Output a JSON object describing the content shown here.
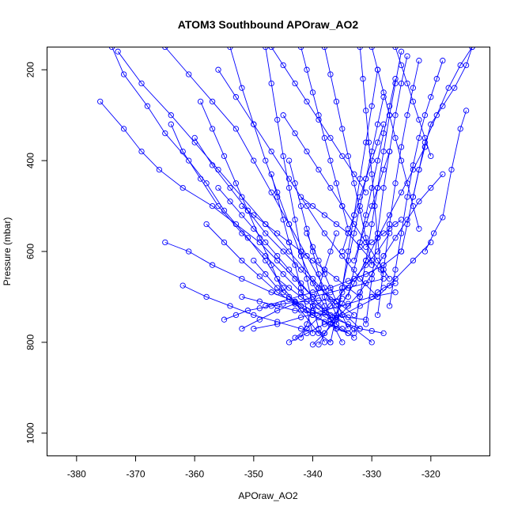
{
  "chart_data": {
    "type": "line",
    "title": "ATOM3 Southbound APOraw_AO2",
    "xlabel": "APOraw_AO2",
    "ylabel": "Pressure (mbar)",
    "xlim": [
      -385,
      -310
    ],
    "ylim": [
      1050,
      150
    ],
    "y_axis_inverted": true,
    "x_ticks": [
      -380,
      -370,
      -360,
      -350,
      -340,
      -330,
      -320
    ],
    "x_tick_labels": [
      "-380",
      "-370",
      "-360",
      "-350",
      "-340",
      "-330",
      "-320"
    ],
    "y_ticks": [
      200,
      400,
      600,
      800,
      1000
    ],
    "y_tick_labels": [
      "200",
      "400",
      "600",
      "800",
      "1000"
    ],
    "marker": "open-circle",
    "series_color": "#0000ff",
    "grid": false,
    "series": [
      {
        "x": [
          -374,
          -372,
          -368,
          -365,
          -361,
          -358,
          -355,
          -351,
          -348,
          -345,
          -342,
          -339,
          -337
        ],
        "y": [
          150,
          210,
          280,
          340,
          400,
          450,
          510,
          570,
          620,
          680,
          730,
          780,
          800
        ]
      },
      {
        "x": [
          -373,
          -369,
          -364,
          -360,
          -356,
          -352,
          -348,
          -344,
          -340,
          -336,
          -332
        ],
        "y": [
          160,
          230,
          300,
          360,
          420,
          480,
          540,
          600,
          660,
          720,
          770
        ]
      },
      {
        "x": [
          -376,
          -372,
          -369,
          -366,
          -362,
          -357,
          -353,
          -349,
          -346,
          -343,
          -340,
          -337,
          -335
        ],
        "y": [
          270,
          330,
          380,
          420,
          460,
          500,
          540,
          580,
          620,
          660,
          700,
          750,
          800
        ]
      },
      {
        "x": [
          -365,
          -361,
          -357,
          -353,
          -350,
          -347,
          -344,
          -341,
          -338,
          -336
        ],
        "y": [
          150,
          210,
          270,
          330,
          400,
          470,
          540,
          610,
          680,
          740
        ]
      },
      {
        "x": [
          -364,
          -362,
          -359,
          -356,
          -352,
          -348,
          -345,
          -342,
          -339,
          -336,
          -333,
          -330
        ],
        "y": [
          320,
          380,
          440,
          500,
          560,
          610,
          650,
          690,
          720,
          745,
          770,
          800
        ]
      },
      {
        "x": [
          -365,
          -361,
          -357,
          -352,
          -347,
          -343,
          -340,
          -337,
          -335,
          -333
        ],
        "y": [
          580,
          600,
          630,
          660,
          690,
          710,
          730,
          750,
          770,
          790
        ]
      },
      {
        "x": [
          -362,
          -358,
          -354,
          -350,
          -346,
          -342,
          -338
        ],
        "y": [
          675,
          700,
          720,
          740,
          755,
          770,
          780
        ]
      },
      {
        "x": [
          -358,
          -355,
          -352,
          -349,
          -346,
          -343,
          -340,
          -337,
          -334
        ],
        "y": [
          540,
          580,
          620,
          655,
          690,
          715,
          740,
          760,
          780
        ]
      },
      {
        "x": [
          -360,
          -357,
          -354,
          -351,
          -348,
          -345,
          -342,
          -339,
          -336,
          -333
        ],
        "y": [
          350,
          410,
          460,
          510,
          560,
          600,
          640,
          680,
          710,
          740
        ]
      },
      {
        "x": [
          -356,
          -353,
          -350,
          -347,
          -344,
          -341,
          -338,
          -335,
          -332,
          -329
        ],
        "y": [
          200,
          260,
          320,
          380,
          440,
          500,
          560,
          610,
          660,
          700
        ]
      },
      {
        "x": [
          -354,
          -352,
          -350,
          -348,
          -346,
          -344,
          -342,
          -340,
          -338,
          -336
        ],
        "y": [
          150,
          240,
          320,
          400,
          470,
          540,
          610,
          670,
          720,
          770
        ]
      },
      {
        "x": [
          -348,
          -347,
          -346,
          -345,
          -344,
          -343,
          -342,
          -341,
          -340,
          -339,
          -338
        ],
        "y": [
          150,
          230,
          310,
          390,
          460,
          530,
          600,
          660,
          720,
          770,
          800
        ]
      },
      {
        "x": [
          -352,
          -349,
          -346,
          -343,
          -340,
          -337,
          -334,
          -331,
          -328
        ],
        "y": [
          770,
          750,
          730,
          715,
          700,
          690,
          680,
          670,
          660
        ]
      },
      {
        "x": [
          -350,
          -346,
          -342,
          -338,
          -334,
          -330,
          -326
        ],
        "y": [
          770,
          760,
          745,
          730,
          715,
          700,
          690
        ]
      },
      {
        "x": [
          -348,
          -344,
          -340,
          -337,
          -334,
          -331,
          -328,
          -325
        ],
        "y": [
          720,
          705,
          690,
          680,
          665,
          650,
          630,
          600
        ]
      },
      {
        "x": [
          -344,
          -341,
          -338,
          -335,
          -332,
          -329,
          -326,
          -323,
          -320
        ],
        "y": [
          800,
          780,
          760,
          740,
          720,
          700,
          660,
          620,
          580
        ]
      },
      {
        "x": [
          -343,
          -341,
          -339,
          -337,
          -335,
          -333,
          -331,
          -329,
          -327
        ],
        "y": [
          790,
          770,
          745,
          720,
          690,
          660,
          630,
          600,
          560
        ]
      },
      {
        "x": [
          -340,
          -338,
          -336,
          -334,
          -332,
          -330,
          -328,
          -326,
          -324,
          -322,
          -320,
          -318
        ],
        "y": [
          805,
          780,
          750,
          720,
          690,
          650,
          610,
          570,
          530,
          490,
          460,
          430
        ]
      },
      {
        "x": [
          -339,
          -337,
          -335,
          -333,
          -331,
          -329,
          -327,
          -325,
          -323,
          -321
        ],
        "y": [
          805,
          760,
          715,
          670,
          620,
          570,
          520,
          470,
          420,
          370
        ]
      },
      {
        "x": [
          -337,
          -336,
          -335,
          -334,
          -333,
          -332,
          -331,
          -330,
          -329,
          -328
        ],
        "y": [
          800,
          740,
          680,
          620,
          560,
          500,
          440,
          380,
          320,
          260
        ]
      },
      {
        "x": [
          -336,
          -335,
          -334,
          -333,
          -332,
          -331,
          -330,
          -329
        ],
        "y": [
          760,
          680,
          600,
          520,
          440,
          360,
          280,
          200
        ]
      },
      {
        "x": [
          -334,
          -333,
          -332,
          -331,
          -330,
          -329,
          -328,
          -327,
          -326
        ],
        "y": [
          700,
          640,
          580,
          520,
          460,
          400,
          340,
          280,
          220
        ]
      },
      {
        "x": [
          -333,
          -332,
          -331,
          -330,
          -329,
          -328,
          -327,
          -326,
          -325
        ],
        "y": [
          780,
          700,
          620,
          540,
          460,
          380,
          300,
          230,
          160
        ]
      },
      {
        "x": [
          -331,
          -330,
          -329,
          -328,
          -327,
          -326,
          -325,
          -324
        ],
        "y": [
          760,
          660,
          560,
          460,
          380,
          300,
          230,
          170
        ]
      },
      {
        "x": [
          -329,
          -328,
          -327,
          -326,
          -325,
          -324,
          -323,
          -322
        ],
        "y": [
          740,
          640,
          540,
          450,
          370,
          300,
          240,
          180
        ]
      },
      {
        "x": [
          -327,
          -326,
          -325,
          -324,
          -323,
          -322,
          -321,
          -320,
          -319,
          -318
        ],
        "y": [
          720,
          640,
          560,
          480,
          410,
          350,
          300,
          260,
          220,
          180
        ]
      },
      {
        "x": [
          -325,
          -324,
          -323,
          -322,
          -321,
          -320,
          -318,
          -316,
          -314,
          -313
        ],
        "y": [
          600,
          540,
          480,
          420,
          370,
          320,
          280,
          240,
          190,
          150
        ]
      },
      {
        "x": [
          -323,
          -322,
          -321,
          -319,
          -317,
          -315,
          -313
        ],
        "y": [
          480,
          420,
          360,
          300,
          240,
          190,
          150
        ]
      },
      {
        "x": [
          -321,
          -319.5,
          -318,
          -316.5,
          -315,
          -314
        ],
        "y": [
          600,
          560,
          525,
          420,
          330,
          290
        ]
      },
      {
        "x": [
          -328,
          -330,
          -332,
          -334,
          -336,
          -338,
          -340,
          -342
        ],
        "y": [
          650,
          620,
          590,
          560,
          540,
          520,
          500,
          480
        ]
      },
      {
        "x": [
          -345,
          -343,
          -341,
          -339,
          -337,
          -335,
          -333,
          -331,
          -329,
          -327
        ],
        "y": [
          300,
          340,
          380,
          420,
          460,
          500,
          540,
          580,
          620,
          660
        ]
      },
      {
        "x": [
          -347,
          -345,
          -343,
          -341,
          -339,
          -337,
          -335,
          -333,
          -331
        ],
        "y": [
          150,
          190,
          230,
          270,
          310,
          350,
          390,
          430,
          470
        ]
      },
      {
        "x": [
          -342,
          -341,
          -340,
          -339,
          -338,
          -337,
          -336,
          -335,
          -334
        ],
        "y": [
          150,
          200,
          250,
          300,
          350,
          400,
          450,
          500,
          550
        ]
      },
      {
        "x": [
          -338,
          -337,
          -336,
          -335,
          -334,
          -333,
          -332,
          -331,
          -330
        ],
        "y": [
          150,
          210,
          270,
          330,
          390,
          450,
          510,
          570,
          630
        ]
      },
      {
        "x": [
          -332,
          -331.5,
          -331,
          -330.5,
          -330,
          -329.5,
          -329,
          -328.5
        ],
        "y": [
          150,
          220,
          290,
          360,
          430,
          500,
          570,
          640
        ]
      },
      {
        "x": [
          -330,
          -329,
          -328,
          -327,
          -326,
          -325,
          -324,
          -323,
          -322
        ],
        "y": [
          150,
          200,
          250,
          300,
          350,
          400,
          450,
          500,
          550
        ]
      },
      {
        "x": [
          -326,
          -325,
          -324,
          -323,
          -322,
          -321,
          -320
        ],
        "y": [
          150,
          190,
          230,
          270,
          310,
          350,
          390
        ]
      },
      {
        "x": [
          -352,
          -350,
          -348,
          -346,
          -344,
          -342,
          -340,
          -338,
          -336,
          -334,
          -332
        ],
        "y": [
          500,
          520,
          540,
          560,
          580,
          600,
          620,
          640,
          660,
          680,
          700
        ]
      },
      {
        "x": [
          -356,
          -354,
          -352,
          -350,
          -348,
          -346,
          -344,
          -342,
          -340
        ],
        "y": [
          460,
          490,
          520,
          550,
          580,
          610,
          640,
          670,
          700
        ]
      },
      {
        "x": [
          -359,
          -357,
          -355,
          -353,
          -351,
          -349,
          -347,
          -345
        ],
        "y": [
          270,
          330,
          390,
          450,
          510,
          570,
          630,
          690
        ]
      },
      {
        "x": [
          -350,
          -348,
          -346,
          -344,
          -342,
          -340,
          -338,
          -336,
          -334
        ],
        "y": [
          620,
          650,
          680,
          700,
          720,
          740,
          755,
          770,
          780
        ]
      },
      {
        "x": [
          -346,
          -344,
          -342,
          -340,
          -338,
          -336,
          -334,
          -332,
          -330,
          -328
        ],
        "y": [
          660,
          680,
          700,
          720,
          735,
          750,
          760,
          770,
          775,
          780
        ]
      },
      {
        "x": [
          -347,
          -346,
          -345,
          -344,
          -343,
          -342,
          -341,
          -340
        ],
        "y": [
          430,
          480,
          530,
          580,
          630,
          680,
          730,
          780
        ]
      },
      {
        "x": [
          -344,
          -343,
          -342,
          -341,
          -340,
          -339,
          -338,
          -337
        ],
        "y": [
          400,
          450,
          500,
          550,
          600,
          650,
          700,
          750
        ]
      },
      {
        "x": [
          -335,
          -334,
          -333,
          -332,
          -331,
          -330,
          -329,
          -328
        ],
        "y": [
          600,
          560,
          520,
          480,
          440,
          400,
          360,
          320
        ]
      },
      {
        "x": [
          -333,
          -332,
          -331,
          -330,
          -329,
          -328,
          -327
        ],
        "y": [
          620,
          580,
          540,
          500,
          460,
          420,
          380
        ]
      },
      {
        "x": [
          -336,
          -337,
          -338,
          -339,
          -340,
          -341,
          -342
        ],
        "y": [
          560,
          600,
          640,
          680,
          720,
          760,
          790
        ]
      },
      {
        "x": [
          -341,
          -340,
          -339,
          -338,
          -337,
          -336,
          -335,
          -334
        ],
        "y": [
          560,
          590,
          620,
          650,
          680,
          710,
          740,
          770
        ]
      },
      {
        "x": [
          -355,
          -353,
          -351,
          -349,
          -347,
          -345,
          -343,
          -341,
          -339,
          -337,
          -335
        ],
        "y": [
          750,
          740,
          730,
          725,
          720,
          715,
          712,
          710,
          708,
          706,
          704
        ]
      },
      {
        "x": [
          -352,
          -349,
          -346,
          -343,
          -340,
          -337,
          -334,
          -331
        ],
        "y": [
          700,
          710,
          720,
          730,
          735,
          740,
          745,
          750
        ]
      },
      {
        "x": [
          -330,
          -329,
          -328,
          -327,
          -326
        ],
        "y": [
          700,
          690,
          680,
          675,
          670
        ]
      },
      {
        "x": [
          -331,
          -330,
          -329,
          -328,
          -327,
          -326,
          -325
        ],
        "y": [
          590,
          580,
          570,
          560,
          550,
          540,
          530
        ]
      }
    ]
  }
}
